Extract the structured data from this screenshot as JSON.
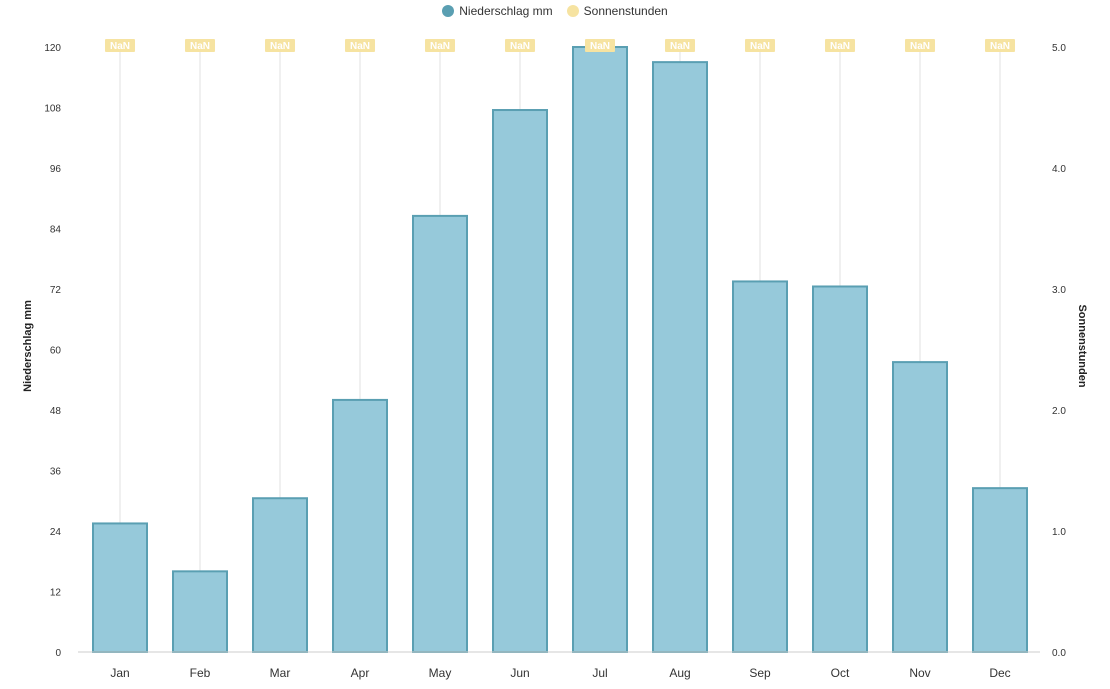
{
  "legend": {
    "series_1": "Niederschlag mm",
    "series_2": "Sonnenstunden"
  },
  "colors": {
    "bar_fill": "#96c9da",
    "bar_stroke": "#5a9fb2",
    "legend_1": "#5a9fb2",
    "legend_2": "#f6e3a1",
    "nan_badge": "#f6e3a1",
    "gridline": "#e2e2e2"
  },
  "chart_data": {
    "type": "bar",
    "categories": [
      "Jan",
      "Feb",
      "Mar",
      "Apr",
      "May",
      "Jun",
      "Jul",
      "Aug",
      "Sep",
      "Oct",
      "Nov",
      "Dec"
    ],
    "series": [
      {
        "name": "Niederschlag mm",
        "type": "bar",
        "axis": "left",
        "values": [
          25.5,
          16,
          30.5,
          50,
          86.5,
          107.5,
          120,
          117,
          73.5,
          72.5,
          57.5,
          32.5
        ]
      },
      {
        "name": "Sonnenstunden",
        "type": "line",
        "axis": "right",
        "values": [
          null,
          null,
          null,
          null,
          null,
          null,
          null,
          null,
          null,
          null,
          null,
          null
        ],
        "point_labels": [
          "NaN",
          "NaN",
          "NaN",
          "NaN",
          "NaN",
          "NaN",
          "NaN",
          "NaN",
          "NaN",
          "NaN",
          "NaN",
          "NaN"
        ]
      }
    ],
    "ylabel": "Niederschlag mm",
    "y2label": "Sonnenstunden",
    "ylim": [
      0,
      120
    ],
    "yticks": [
      "0",
      "12",
      "24",
      "36",
      "48",
      "60",
      "72",
      "84",
      "96",
      "108",
      "120"
    ],
    "y2lim": [
      0,
      5
    ],
    "y2ticks": [
      "0.0",
      "1.0",
      "2.0",
      "3.0",
      "4.0",
      "5.0"
    ],
    "grid": "vertical",
    "legend_position": "top-center"
  }
}
